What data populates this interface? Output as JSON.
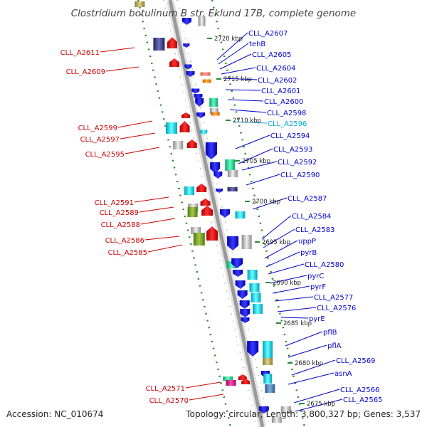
{
  "title": "Clostridium botulinum B str. Eklund 17B, complete genome",
  "footer": {
    "accession": "Accession: NC_010674",
    "topology": "Topology: circular; Length: 3,800,327 bp; Genes: 3,537"
  },
  "colors": {
    "forward_label": "#0000cc",
    "reverse_label": "#cc0000",
    "highlight_label": "#00aadd",
    "backbone": "#9a9a9a",
    "track_dots": "#2e8b2e"
  },
  "kbp_marks": [
    "2720 kbp",
    "2715 kbp",
    "2710 kbp",
    "2705 kbp",
    "2700 kbp",
    "2695 kbp",
    "2690 kbp",
    "2685 kbp",
    "2680 kbp",
    "2675 kbp"
  ],
  "right_labels": [
    "CLL_A2607",
    "tehB",
    "CLL_A2605",
    "CLL_A2604",
    "CLL_A2602",
    "CLL_A2601",
    "CLL_A2600",
    "CLL_A2598",
    "CLL_A2596",
    "CLL_A2594",
    "CLL_A2593",
    "CLL_A2592",
    "CLL_A2590",
    "CLL_A2587",
    "CLL_A2584",
    "CLL_A2583",
    "uppP",
    "pyrB",
    "CLL_A2580",
    "pyrC",
    "pyrF",
    "CLL_A2577",
    "CLL_A2576",
    "pyrE",
    "pflB",
    "pflA",
    "CLL_A2569",
    "asnA",
    "CLL_A2566",
    "CLL_A2565"
  ],
  "left_labels": [
    "CLL_A2611",
    "CLL_A2609",
    "CLL_A2599",
    "CLL_A2597",
    "CLL_A2595",
    "CLL_A2591",
    "CLL_A2589",
    "CLL_A2588",
    "CLL_A2586",
    "CLL_A2585",
    "CLL_A2571",
    "CLL_A2570"
  ]
}
